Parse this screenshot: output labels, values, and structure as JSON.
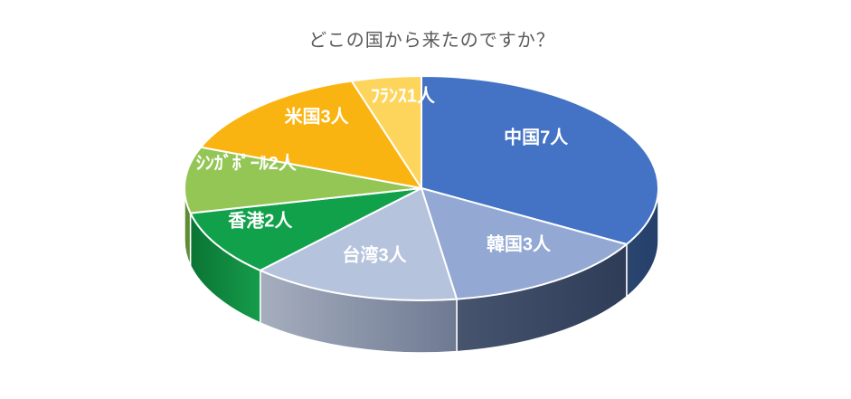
{
  "chart_data": {
    "type": "pie",
    "projection": "3d",
    "title": "どこの国から来たのですか？",
    "title_color": "#595959",
    "unit": "人",
    "total": 21,
    "start_angle_deg": 0,
    "direction": "clockwise",
    "legend": "none",
    "label_color": "#FFFFFF",
    "slices": [
      {
        "slug": "china",
        "category": "中国",
        "value": 7,
        "label": "中国7人",
        "color": "#4472C4",
        "side_colors": [
          "#2A466F",
          "#24406B"
        ]
      },
      {
        "slug": "korea",
        "category": "韓国",
        "value": 3,
        "label": "韓国3人",
        "color": "#93A9D4",
        "side_colors": [
          "#46546E",
          "#2F3C58"
        ]
      },
      {
        "slug": "taiwan",
        "category": "台湾",
        "value": 3,
        "label": "台湾3人",
        "color": "#B6C3DC",
        "side_colors": [
          "#A6AEBE",
          "#6E7A92"
        ]
      },
      {
        "slug": "hongkong",
        "category": "香港",
        "value": 2,
        "label": "香港2人",
        "color": "#12A14B",
        "side_colors": [
          "#0A7434",
          "#169C4A"
        ]
      },
      {
        "slug": "singapore",
        "category": "シンガポール",
        "value": 2,
        "label": "ｼﾝｶﾞﾎﾟｰﾙ2人",
        "color": "#94C656",
        "side_colors": [
          "#5F8C34",
          "#5F8C34"
        ]
      },
      {
        "slug": "usa",
        "category": "米国",
        "value": 3,
        "label": "米国3人",
        "color": "#FAB411",
        "side_colors": [
          "#B27E0B",
          "#B27E0B"
        ]
      },
      {
        "slug": "france",
        "category": "フランス",
        "value": 1,
        "label": "ﾌﾗﾝｽ1人",
        "color": "#FED55C",
        "side_colors": [
          "#C7A039",
          "#C7A039"
        ]
      }
    ]
  }
}
